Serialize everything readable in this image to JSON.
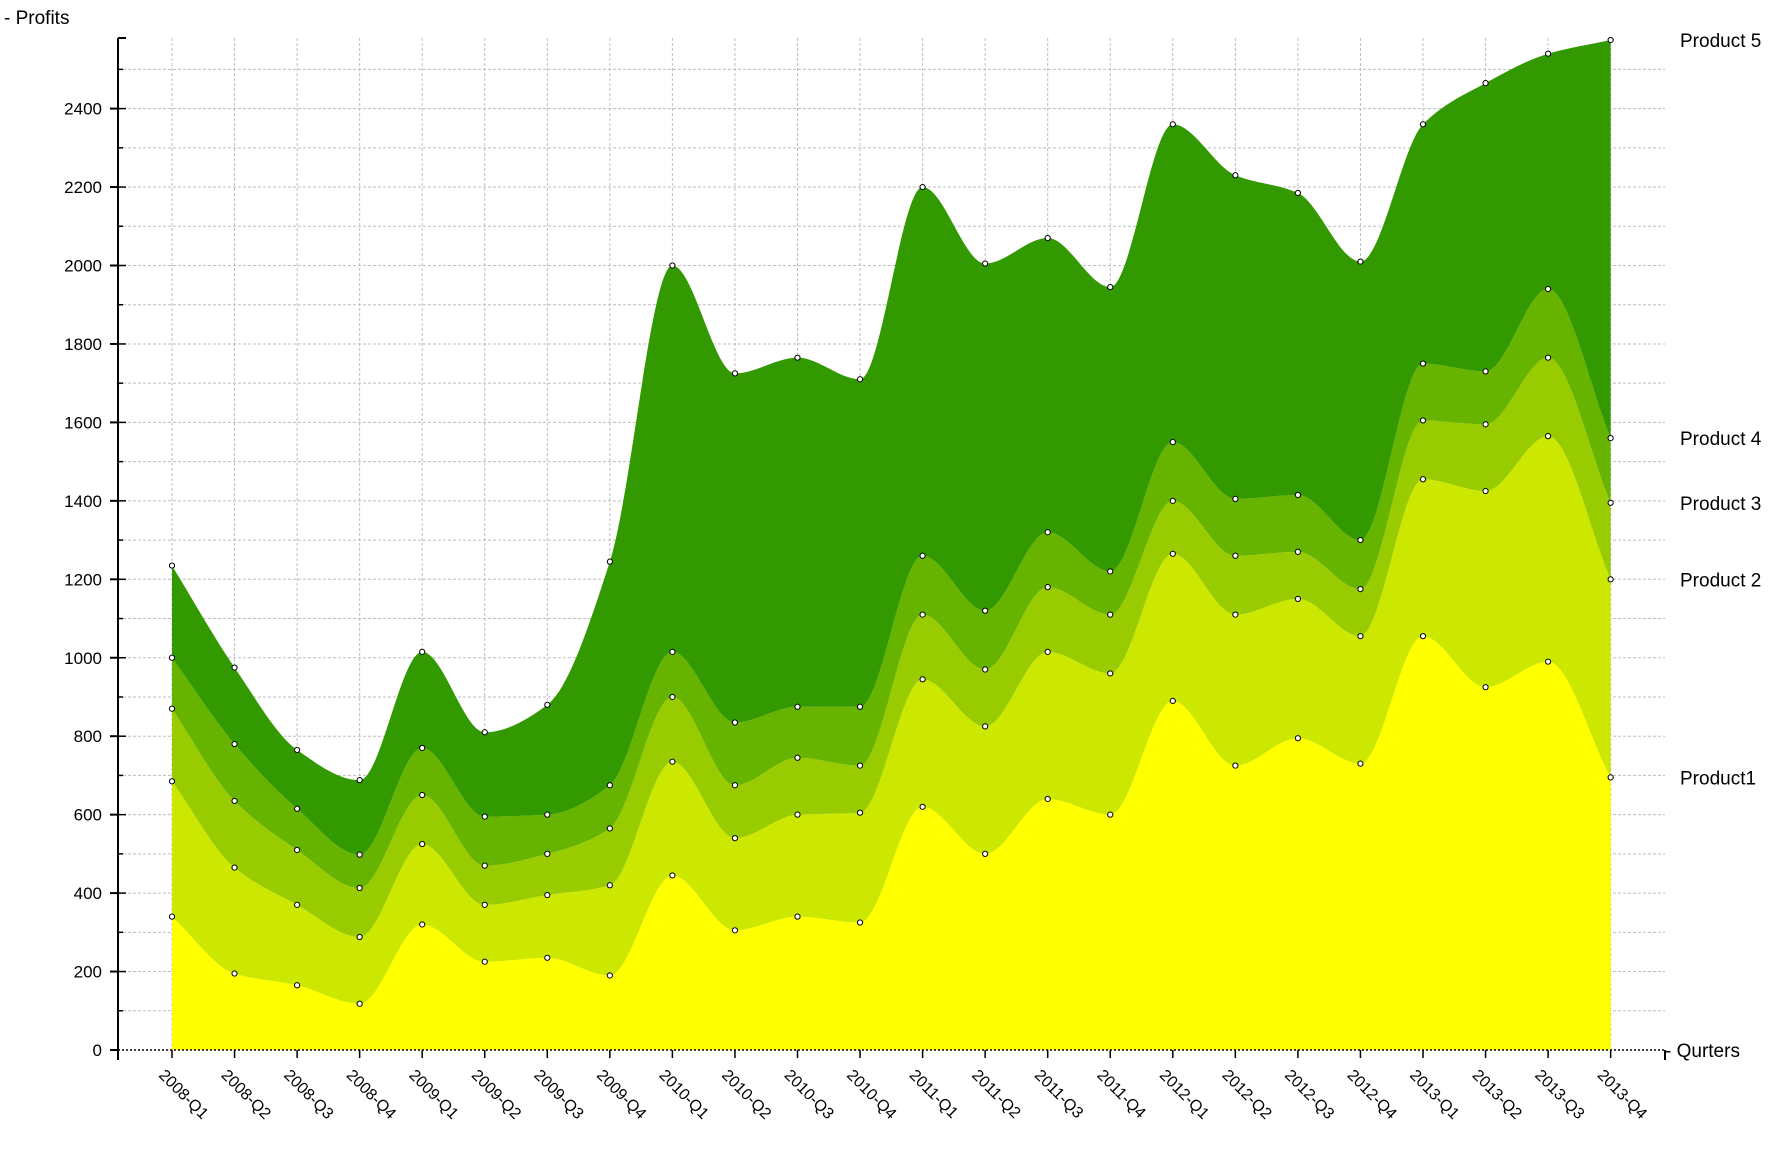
{
  "chart_data": {
    "type": "area",
    "stacked": true,
    "ylabel": "- Profits",
    "xlabel": "- Qurters",
    "ylim": [
      0,
      2580
    ],
    "y_ticks": [
      0,
      200,
      400,
      600,
      800,
      1000,
      1200,
      1400,
      1600,
      1800,
      2000,
      2200,
      2400
    ],
    "grid": true,
    "label_placement": "right-end-of-series",
    "categories": [
      "2008-Q1",
      "2008-Q2",
      "2008-Q3",
      "2008-Q4",
      "2009-Q1",
      "2009-Q2",
      "2009-Q3",
      "2009-Q4",
      "2010-Q1",
      "2010-Q2",
      "2010-Q3",
      "2010-Q4",
      "2011-Q1",
      "2011-Q2",
      "2011-Q3",
      "2011-Q4",
      "2012-Q1",
      "2012-Q2",
      "2012-Q3",
      "2012-Q4",
      "2013-Q1",
      "2013-Q2",
      "2013-Q3",
      "2013-Q4"
    ],
    "series": [
      {
        "name": "Product1",
        "color": "#ffff00",
        "values": [
          340,
          195,
          165,
          118,
          320,
          225,
          235,
          190,
          445,
          305,
          340,
          325,
          620,
          500,
          640,
          600,
          890,
          725,
          795,
          730,
          1055,
          925,
          990,
          695
        ]
      },
      {
        "name": "Product 2",
        "color": "#cce800",
        "values": [
          345,
          270,
          205,
          170,
          205,
          145,
          160,
          230,
          290,
          235,
          260,
          280,
          325,
          325,
          375,
          360,
          375,
          385,
          355,
          325,
          400,
          500,
          575,
          505
        ]
      },
      {
        "name": "Product 3",
        "color": "#99cc00",
        "values": [
          185,
          170,
          140,
          125,
          125,
          100,
          105,
          145,
          165,
          135,
          145,
          120,
          165,
          145,
          165,
          150,
          135,
          150,
          120,
          120,
          150,
          170,
          200,
          195
        ]
      },
      {
        "name": "Product 4",
        "color": "#66b300",
        "values": [
          130,
          145,
          105,
          85,
          120,
          125,
          100,
          110,
          115,
          160,
          130,
          150,
          150,
          150,
          140,
          110,
          150,
          145,
          145,
          125,
          145,
          135,
          175,
          165
        ]
      },
      {
        "name": "Product 5",
        "color": "#339900",
        "values": [
          235,
          195,
          150,
          190,
          245,
          215,
          280,
          570,
          985,
          890,
          890,
          835,
          940,
          885,
          750,
          725,
          810,
          825,
          770,
          710,
          610,
          735,
          600,
          1015
        ]
      }
    ]
  }
}
